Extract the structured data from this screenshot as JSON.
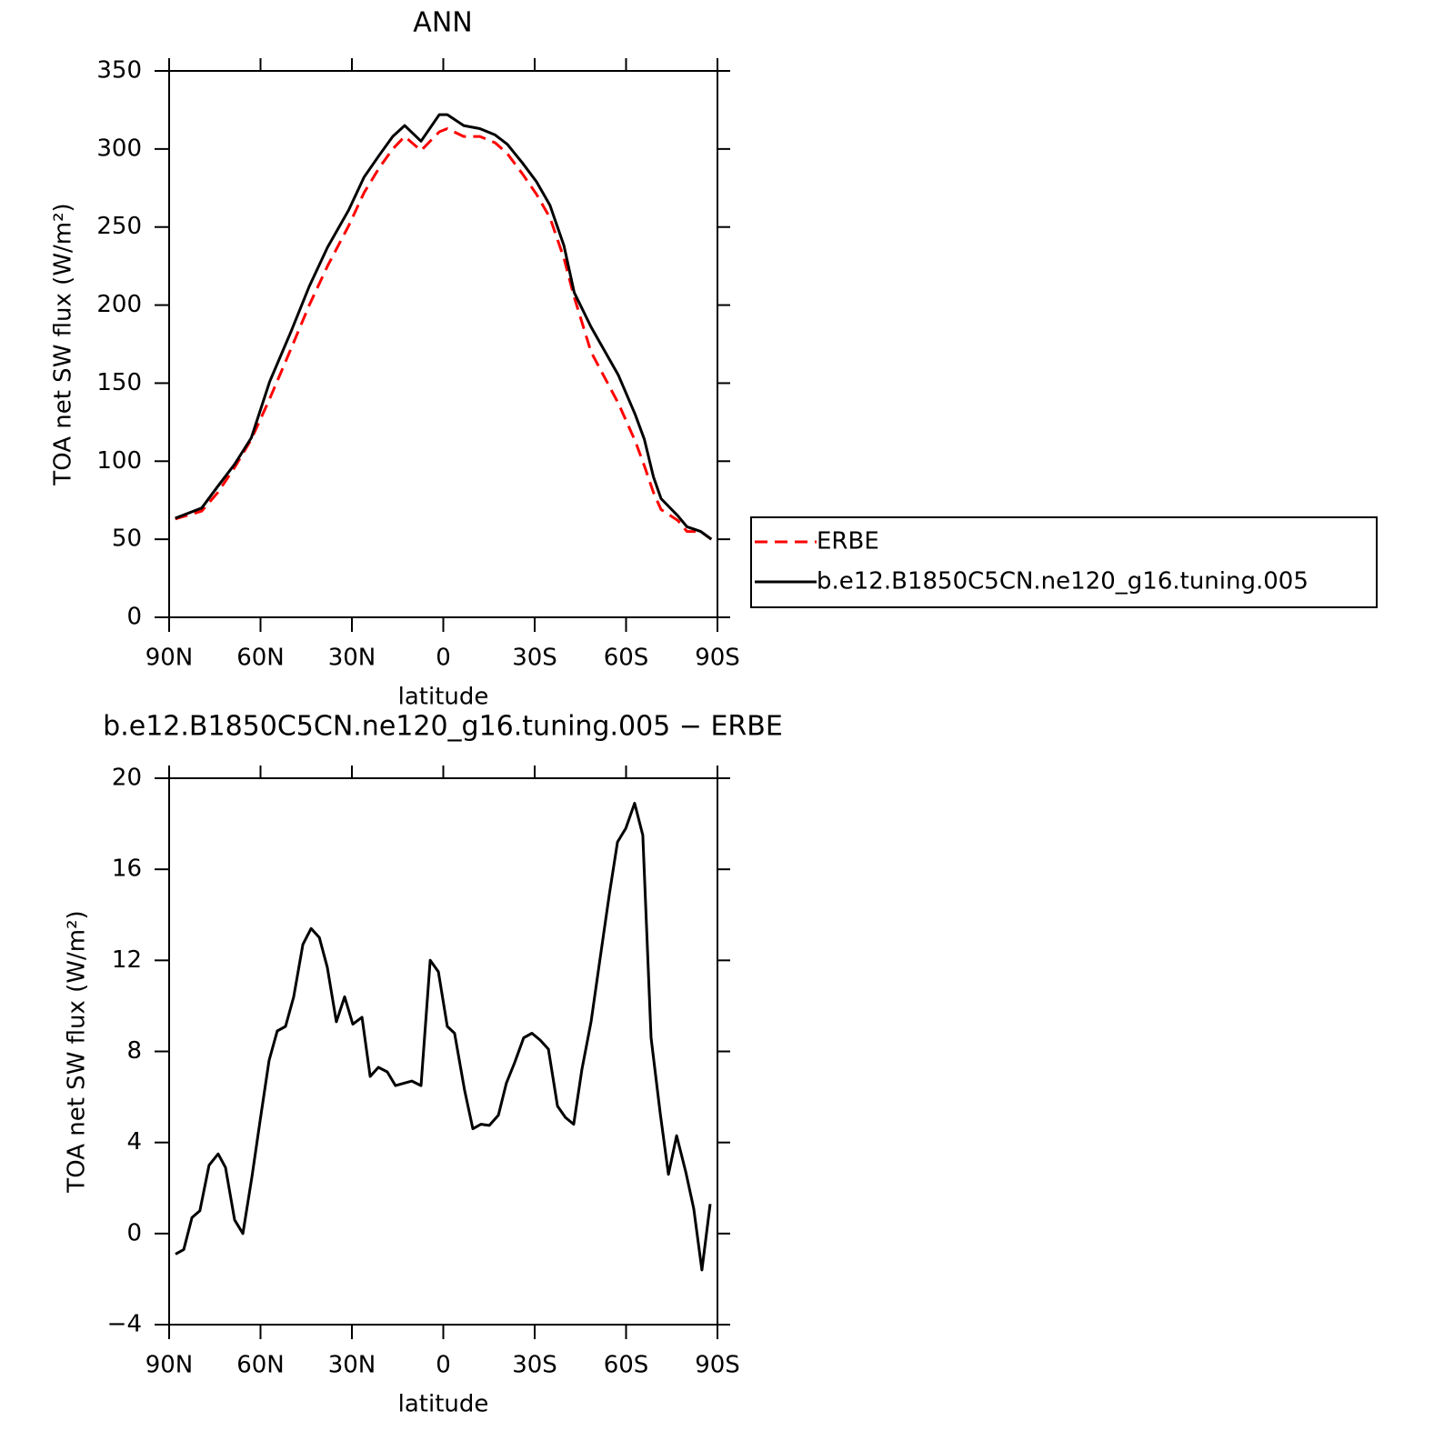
{
  "chart_data": [
    {
      "type": "line",
      "title": "ANN",
      "xlabel": "latitude",
      "ylabel": "TOA net SW flux (W/m²)",
      "x": [
        88,
        79.3,
        74,
        68.5,
        63,
        57,
        50,
        44,
        38,
        31,
        26,
        21,
        16.6,
        12.7,
        7.3,
        1.3,
        -1.3,
        -6.7,
        -12,
        -17,
        -21,
        -26,
        -30.6,
        -35,
        -39.6,
        -43,
        -48.5,
        -57.5,
        -63,
        -66,
        -69,
        -71.5,
        -77,
        -80,
        -84.5,
        -88
      ],
      "series": [
        {
          "name": "ERBE",
          "color": "#ff0000",
          "dashed": true,
          "values": [
            63,
            68,
            80,
            96,
            114,
            140,
            172,
            200,
            225,
            251,
            272,
            288,
            300,
            308,
            299,
            311,
            313,
            308,
            308,
            304,
            297,
            284,
            271,
            256,
            230,
            205,
            170,
            137,
            113,
            97,
            80,
            69,
            62,
            55,
            55,
            50
          ]
        },
        {
          "name": "b.e12.B1850C5CN.ne120_g16.tuning.005",
          "color": "#000000",
          "dashed": false,
          "values": [
            63.5,
            70,
            84,
            98,
            115,
            151,
            183,
            212,
            237,
            261,
            282,
            296,
            308,
            315,
            305,
            322,
            322,
            315,
            313,
            309,
            303,
            291,
            279,
            264,
            238,
            208,
            186,
            155,
            130,
            114,
            90,
            76,
            65,
            58,
            55,
            50
          ]
        }
      ],
      "xlim": [
        90,
        -90
      ],
      "xticks": [
        {
          "value": 90,
          "label": "90N"
        },
        {
          "value": 60,
          "label": "60N"
        },
        {
          "value": 30,
          "label": "30N"
        },
        0,
        {
          "value": -30,
          "label": "30S"
        },
        {
          "value": -60,
          "label": "60S"
        },
        {
          "value": -90,
          "label": "90S"
        }
      ],
      "ylim": [
        0,
        350
      ],
      "yticks": [
        0,
        50,
        100,
        150,
        200,
        250,
        300,
        350
      ],
      "legend": "right"
    },
    {
      "type": "line",
      "title": "b.e12.B1850C5CN.ne120_g16.tuning.005 − ERBE",
      "xlabel": "latitude",
      "ylabel": "TOA net SW flux (W/m²)",
      "x": [
        87.9,
        85.2,
        82.5,
        79.9,
        76.9,
        73.9,
        71.5,
        68.5,
        65.8,
        62.8,
        60.1,
        57.2,
        54.5,
        51.8,
        49.1,
        46.1,
        43.4,
        40.7,
        38.1,
        35.1,
        32.4,
        29.7,
        26.7,
        24.0,
        21.3,
        18.4,
        15.7,
        13.0,
        10.3,
        7.3,
        4.3,
        1.6,
        -1.3,
        -3.7,
        -7.0,
        -9.7,
        -12.4,
        -15.1,
        -18.1,
        -20.7,
        -23.4,
        -26.4,
        -29.1,
        -31.8,
        -34.5,
        -37.5,
        -40.1,
        -42.8,
        -45.5,
        -48.5,
        -51.5,
        -54.5,
        -57.2,
        -59.9,
        -62.8,
        -65.5,
        -68.2,
        -71.2,
        -73.9,
        -76.6,
        -79.6,
        -82.2,
        -84.9,
        -87.6
      ],
      "series": [
        {
          "color": "#000000",
          "dashed": false,
          "values": [
            -0.9,
            -0.7,
            0.7,
            1.0,
            3.0,
            3.5,
            2.9,
            0.6,
            0.0,
            2.5,
            5.0,
            7.6,
            8.9,
            9.1,
            10.4,
            12.7,
            13.4,
            13.0,
            11.7,
            9.3,
            10.4,
            9.2,
            9.5,
            6.9,
            7.3,
            7.1,
            6.5,
            6.6,
            6.7,
            6.5,
            12.0,
            11.5,
            9.1,
            8.8,
            6.3,
            4.6,
            4.8,
            4.75,
            5.2,
            6.6,
            7.5,
            8.6,
            8.8,
            8.5,
            8.1,
            5.6,
            5.1,
            4.8,
            7.2,
            9.3,
            12.1,
            14.9,
            17.2,
            17.8,
            18.9,
            17.5,
            8.6,
            5.3,
            2.6,
            4.3,
            2.7,
            1.1,
            -1.6,
            1.3
          ]
        }
      ],
      "xlim": [
        90,
        -90
      ],
      "xticks": [
        {
          "value": 90,
          "label": "90N"
        },
        {
          "value": 60,
          "label": "60N"
        },
        {
          "value": 30,
          "label": "30N"
        },
        0,
        {
          "value": -30,
          "label": "30S"
        },
        {
          "value": -60,
          "label": "60S"
        },
        {
          "value": -90,
          "label": "90S"
        }
      ],
      "ylim": [
        -4,
        20
      ],
      "yticks": [
        {
          "value": -4,
          "label": "−4"
        },
        0,
        4,
        8,
        12,
        16,
        20
      ]
    }
  ]
}
